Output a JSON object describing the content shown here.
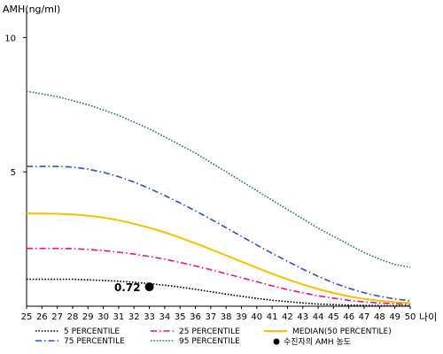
{
  "chart_data": {
    "type": "line",
    "ylabel": "AMH(ng/ml)",
    "xlabel": "나이",
    "x": [
      25,
      26,
      27,
      28,
      29,
      30,
      31,
      32,
      33,
      34,
      35,
      36,
      37,
      38,
      39,
      40,
      41,
      42,
      43,
      44,
      45,
      46,
      47,
      48,
      49,
      50
    ],
    "xlim": [
      25,
      50
    ],
    "ylim": [
      0,
      11
    ],
    "yticks": [
      5,
      10
    ],
    "grid": false,
    "legend_position": "bottom",
    "series": [
      {
        "name": "5 PERCENTILE",
        "color": "#000000",
        "dash": "dotted",
        "values": [
          1.0,
          1.0,
          1.0,
          1.0,
          0.98,
          0.96,
          0.93,
          0.89,
          0.84,
          0.78,
          0.71,
          0.63,
          0.54,
          0.45,
          0.37,
          0.29,
          0.22,
          0.17,
          0.12,
          0.08,
          0.06,
          0.04,
          0.03,
          0.02,
          0.02,
          0.02
        ]
      },
      {
        "name": "25 PERCENTILE",
        "color": "#e01880",
        "dash": "dashdot",
        "values": [
          2.15,
          2.15,
          2.15,
          2.14,
          2.11,
          2.07,
          2.01,
          1.94,
          1.85,
          1.75,
          1.63,
          1.5,
          1.36,
          1.21,
          1.06,
          0.91,
          0.76,
          0.62,
          0.5,
          0.39,
          0.3,
          0.22,
          0.16,
          0.12,
          0.09,
          0.07
        ]
      },
      {
        "name": "MEDIAN(50 PERCENTILE)",
        "color": "#f2c200",
        "dash": "solid",
        "values": [
          3.45,
          3.45,
          3.44,
          3.42,
          3.37,
          3.3,
          3.2,
          3.07,
          2.92,
          2.75,
          2.55,
          2.34,
          2.12,
          1.89,
          1.66,
          1.43,
          1.21,
          1.0,
          0.81,
          0.64,
          0.49,
          0.37,
          0.27,
          0.2,
          0.15,
          0.12
        ]
      },
      {
        "name": "75 PERCENTILE",
        "color": "#3050c0",
        "dash": "dashdot",
        "values": [
          5.2,
          5.2,
          5.2,
          5.18,
          5.1,
          4.98,
          4.82,
          4.62,
          4.38,
          4.12,
          3.84,
          3.55,
          3.24,
          2.92,
          2.6,
          2.28,
          1.97,
          1.67,
          1.38,
          1.11,
          0.87,
          0.67,
          0.5,
          0.37,
          0.27,
          0.2
        ]
      },
      {
        "name": "95 PERCENTILE",
        "color": "#208040",
        "dash": "dotted",
        "values": [
          8.0,
          7.9,
          7.8,
          7.65,
          7.5,
          7.3,
          7.1,
          6.85,
          6.6,
          6.3,
          6.0,
          5.7,
          5.35,
          5.0,
          4.65,
          4.3,
          3.95,
          3.6,
          3.25,
          2.9,
          2.6,
          2.3,
          2.0,
          1.75,
          1.55,
          1.45
        ]
      }
    ],
    "marker": {
      "name": "수진자의 AMH 농도",
      "x": 33,
      "y": 0.72,
      "label": "0.72",
      "color": "#000000"
    }
  }
}
